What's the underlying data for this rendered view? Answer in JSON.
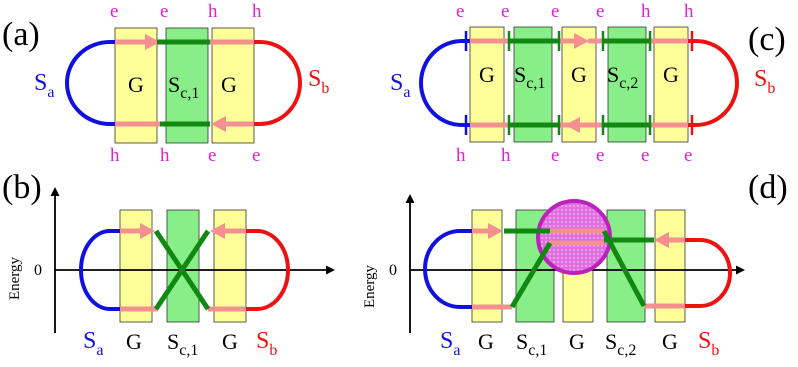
{
  "panels": {
    "a": {
      "label": "(a)",
      "top_letters": [
        "e",
        "e",
        "h",
        "h"
      ],
      "bottom_letters": [
        "h",
        "h",
        "e",
        "e"
      ]
    },
    "b": {
      "label": "(b)"
    },
    "c": {
      "label": "(c)",
      "top_letters": [
        "e",
        "e",
        "e",
        "e",
        "h",
        "h"
      ],
      "bottom_letters": [
        "h",
        "h",
        "e",
        "e",
        "e",
        "e"
      ]
    },
    "d": {
      "label": "(d)"
    }
  },
  "labels": {
    "sa_main": "S",
    "sa_sub": "a",
    "sb_main": "S",
    "sb_sub": "b",
    "g": "G",
    "sc1_main": "S",
    "sc1_sub": "c,1",
    "sc2_main": "S",
    "sc2_sub": "c,2",
    "energy": "Energy",
    "zero": "0"
  },
  "colors": {
    "sa_blue": "#1010e0",
    "sb_red": "#ee1111",
    "g_yellow": "#ffff99",
    "sc_green": "#88ee88",
    "path_pink": "#f59090",
    "path_green": "#118811",
    "letters_magenta": "#e020d0",
    "circle_magenta": "#bb22bb"
  }
}
